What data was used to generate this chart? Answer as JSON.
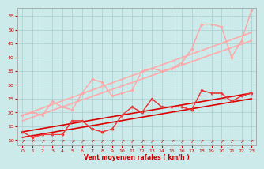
{
  "title": "",
  "xlabel": "Vent moyen/en rafales ( km/h )",
  "background_color": "#cceaea",
  "grid_color": "#aacccc",
  "x_ticks": [
    0,
    1,
    2,
    3,
    4,
    5,
    6,
    7,
    8,
    9,
    10,
    11,
    12,
    13,
    14,
    15,
    16,
    17,
    18,
    19,
    20,
    21,
    22,
    23
  ],
  "y_ticks": [
    10,
    15,
    20,
    25,
    30,
    35,
    40,
    45,
    50,
    55
  ],
  "ylim": [
    8,
    58
  ],
  "xlim": [
    -0.5,
    23.5
  ],
  "series": [
    {
      "comment": "pink regression line 1 (straight, upper)",
      "x": [
        0,
        23
      ],
      "y": [
        19,
        49
      ],
      "color": "#ffaaaa",
      "lw": 1.2,
      "marker": null,
      "ms": 0
    },
    {
      "comment": "pink regression line 2 (straight, lower)",
      "x": [
        0,
        23
      ],
      "y": [
        17,
        46
      ],
      "color": "#ffaaaa",
      "lw": 1.2,
      "marker": null,
      "ms": 0
    },
    {
      "comment": "pink data line with diamonds",
      "x": [
        0,
        1,
        2,
        3,
        4,
        5,
        6,
        7,
        8,
        9,
        10,
        11,
        12,
        13,
        14,
        15,
        16,
        17,
        18,
        19,
        20,
        21,
        22,
        23
      ],
      "y": [
        19,
        20,
        19,
        24,
        22,
        21,
        27,
        32,
        31,
        26,
        27,
        28,
        35,
        36,
        35,
        36,
        38,
        43,
        52,
        52,
        51,
        40,
        46,
        57
      ],
      "color": "#ff9999",
      "lw": 0.8,
      "marker": "D",
      "ms": 2
    },
    {
      "comment": "pink data line with triangles",
      "x": [
        0,
        1,
        2,
        3,
        4,
        5,
        6,
        7,
        8,
        9,
        10,
        11,
        12,
        13,
        14,
        15,
        16,
        17,
        18,
        19,
        20,
        21,
        22,
        23
      ],
      "y": [
        19,
        20,
        19,
        24,
        22,
        21,
        27,
        32,
        31,
        26,
        27,
        28,
        35,
        36,
        35,
        36,
        38,
        43,
        52,
        52,
        51,
        40,
        46,
        57
      ],
      "color": "#ffaaaa",
      "lw": 0.8,
      "marker": "^",
      "ms": 2
    },
    {
      "comment": "red regression line 1 (straight, upper)",
      "x": [
        0,
        23
      ],
      "y": [
        13,
        27
      ],
      "color": "#dd0000",
      "lw": 1.2,
      "marker": null,
      "ms": 0
    },
    {
      "comment": "red regression line 2 (straight, lower)",
      "x": [
        0,
        23
      ],
      "y": [
        11,
        25
      ],
      "color": "#dd0000",
      "lw": 1.2,
      "marker": null,
      "ms": 0
    },
    {
      "comment": "red data line with diamonds",
      "x": [
        0,
        1,
        2,
        3,
        4,
        5,
        6,
        7,
        8,
        9,
        10,
        11,
        12,
        13,
        14,
        15,
        16,
        17,
        18,
        19,
        20,
        21,
        22,
        23
      ],
      "y": [
        13,
        11,
        12,
        12,
        12,
        17,
        17,
        14,
        13,
        14,
        19,
        22,
        20,
        25,
        22,
        22,
        22,
        21,
        28,
        27,
        27,
        24,
        26,
        27
      ],
      "color": "#dd0000",
      "lw": 0.8,
      "marker": "D",
      "ms": 2
    },
    {
      "comment": "red data line with triangles",
      "x": [
        0,
        1,
        2,
        3,
        4,
        5,
        6,
        7,
        8,
        9,
        10,
        11,
        12,
        13,
        14,
        15,
        16,
        17,
        18,
        19,
        20,
        21,
        22,
        23
      ],
      "y": [
        13,
        11,
        12,
        12,
        12,
        17,
        17,
        14,
        13,
        14,
        19,
        22,
        20,
        25,
        22,
        22,
        22,
        21,
        28,
        27,
        27,
        24,
        26,
        27
      ],
      "color": "#ee4444",
      "lw": 0.8,
      "marker": "^",
      "ms": 2.5
    }
  ],
  "arrow_color": "#cc0000",
  "arrow_size": 4.5
}
